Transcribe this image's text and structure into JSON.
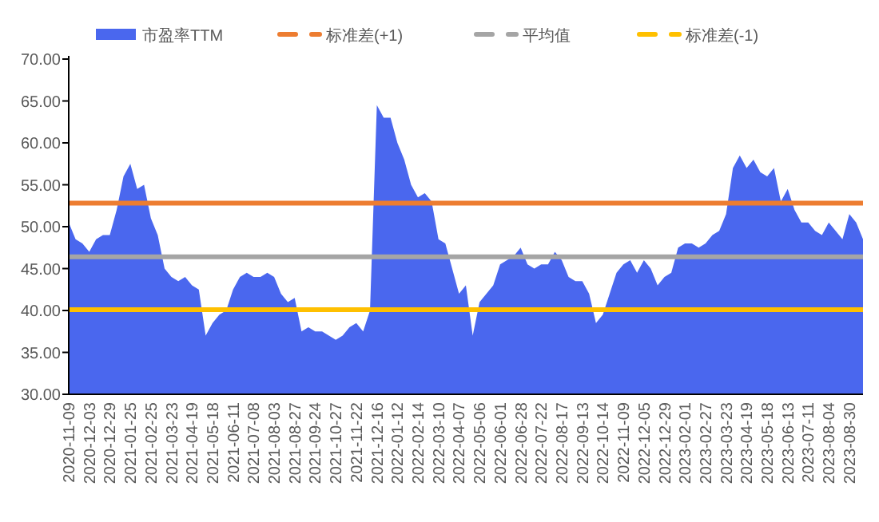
{
  "chart_data": {
    "type": "area",
    "categories": [
      "2020-11-09",
      null,
      null,
      "2020-12-03",
      null,
      null,
      "2020-12-29",
      null,
      null,
      "2021-01-25",
      null,
      null,
      "2021-02-25",
      null,
      null,
      "2021-03-23",
      null,
      null,
      "2021-04-19",
      null,
      null,
      "2021-05-18",
      null,
      null,
      "2021-06-11",
      null,
      null,
      "2021-07-08",
      null,
      null,
      "2021-08-03",
      null,
      null,
      "2021-08-27",
      null,
      null,
      "2021-09-24",
      null,
      null,
      "2021-10-27",
      null,
      null,
      "2021-11-22",
      null,
      null,
      "2021-12-16",
      null,
      null,
      "2022-01-12",
      null,
      null,
      "2022-02-14",
      null,
      null,
      "2022-03-10",
      null,
      null,
      "2022-04-07",
      null,
      null,
      "2022-05-06",
      null,
      null,
      "2022-06-01",
      null,
      null,
      "2022-06-28",
      null,
      null,
      "2022-07-22",
      null,
      null,
      "2022-08-17",
      null,
      null,
      "2022-09-13",
      null,
      null,
      "2022-10-14",
      null,
      null,
      "2022-11-09",
      null,
      null,
      "2022-12-05",
      null,
      null,
      "2022-12-29",
      null,
      null,
      "2023-02-01",
      null,
      null,
      "2023-02-27",
      null,
      null,
      "2023-03-23",
      null,
      null,
      "2023-04-19",
      null,
      null,
      "2023-05-18",
      null,
      null,
      "2023-06-13",
      null,
      null,
      "2023-07-11",
      null,
      null,
      "2023-08-04",
      null,
      null,
      "2023-08-30",
      null,
      null
    ],
    "series": [
      {
        "name": "市盈率TTM",
        "color": "#4a67ee",
        "values": [
          50.5,
          48.5,
          48,
          47,
          48.5,
          49,
          49,
          52,
          56,
          57.5,
          54.5,
          55,
          51,
          49,
          45,
          44,
          43.5,
          44,
          43,
          42.5,
          37,
          38.5,
          39.5,
          40,
          42.5,
          44,
          44.5,
          44,
          44,
          44.5,
          44,
          42,
          41,
          41.5,
          37.5,
          38,
          37.5,
          37.5,
          37,
          36.5,
          37,
          38,
          38.5,
          37.5,
          40,
          64.5,
          63,
          63,
          60,
          58,
          55,
          53.5,
          54,
          53,
          48.5,
          48,
          45,
          42,
          43,
          37,
          41,
          42,
          43,
          45.5,
          46,
          46.5,
          47.5,
          45.5,
          45,
          45.5,
          45.5,
          47,
          46,
          44,
          43.5,
          43.5,
          42,
          38.5,
          39.5,
          42,
          44.5,
          45.5,
          46,
          44.5,
          46,
          45,
          43,
          44,
          44.5,
          47.5,
          48,
          48,
          47.5,
          48,
          49,
          49.5,
          51.5,
          57,
          58.5,
          57,
          58,
          56.5,
          56,
          57,
          53,
          54.5,
          52,
          50.5,
          50.5,
          49.5,
          49,
          50.5,
          49.5,
          48.5,
          51.5,
          50.5,
          48.5
        ]
      }
    ],
    "ylim": [
      30,
      70
    ],
    "yticks": [
      {
        "value": 30,
        "label": "30.00"
      },
      {
        "value": 35,
        "label": "35.00"
      },
      {
        "value": 40,
        "label": "40.00"
      },
      {
        "value": 45,
        "label": "45.00"
      },
      {
        "value": 50,
        "label": "50.00"
      },
      {
        "value": 55,
        "label": "55.00"
      },
      {
        "value": 60,
        "label": "60.00"
      },
      {
        "value": 65,
        "label": "65.00"
      },
      {
        "value": 70,
        "label": "70.00"
      }
    ],
    "ref_lines": [
      {
        "axis": "y",
        "value": 52.8,
        "label": "标准差(+1)",
        "color": "#ed7d31"
      },
      {
        "axis": "y",
        "value": 46.4,
        "label": "平均值",
        "color": "#a5a5a5"
      },
      {
        "axis": "y",
        "value": 40.1,
        "label": "标准差(-1)",
        "color": "#ffc000"
      }
    ],
    "legend": "top",
    "grid": false
  }
}
